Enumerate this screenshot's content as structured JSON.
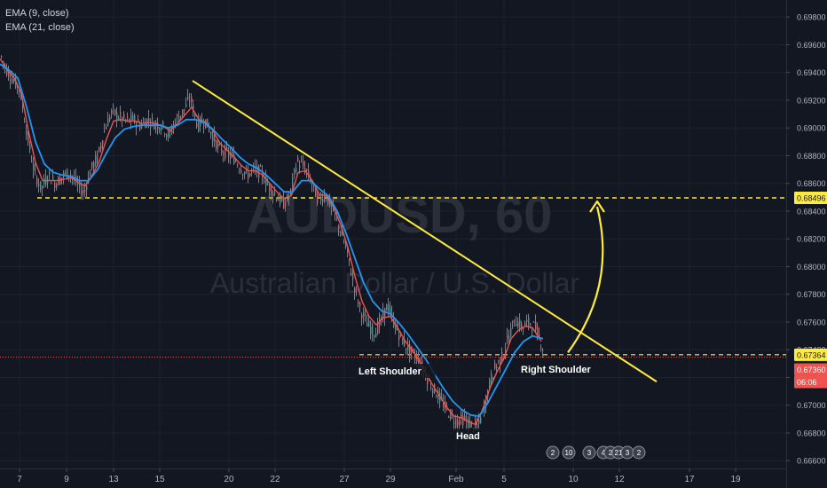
{
  "chart_data": {
    "type": "line",
    "symbol": "AUDUSD, 60",
    "description": "Australian Dollar / U.S. Dollar",
    "indicators": [
      "EMA (9, close)",
      "EMA (21, close)"
    ],
    "x_ticks": [
      "7",
      "9",
      "13",
      "15",
      "20",
      "22",
      "27",
      "29",
      "Feb",
      "5",
      "10",
      "12",
      "17",
      "19"
    ],
    "y_ticks": [
      "0.69800",
      "0.69600",
      "0.69400",
      "0.69200",
      "0.69000",
      "0.68800",
      "0.68600",
      "0.68400",
      "0.68200",
      "0.68000",
      "0.67800",
      "0.67600",
      "0.67400",
      "0.67200",
      "0.67000",
      "0.66800",
      "0.66600"
    ],
    "ylim": [
      0.6655,
      0.6991
    ],
    "price_labels": {
      "resistance": "0.68496",
      "neckline": "0.67364",
      "last_price": "0.67360",
      "countdown": "06:06"
    },
    "annotations": {
      "left_shoulder": "Left Shoulder",
      "head": "Head",
      "right_shoulder": "Right Shoulder"
    },
    "event_flags": [
      "2",
      "10",
      "3",
      "4",
      "2",
      "21",
      "3",
      "2"
    ],
    "price_path": [
      [
        0,
        0.6953
      ],
      [
        6,
        0.6943
      ],
      [
        14,
        0.6935
      ],
      [
        22,
        0.6928
      ],
      [
        30,
        0.6895
      ],
      [
        38,
        0.6868
      ],
      [
        46,
        0.6856
      ],
      [
        54,
        0.6866
      ],
      [
        62,
        0.686
      ],
      [
        70,
        0.6865
      ],
      [
        78,
        0.6868
      ],
      [
        86,
        0.686
      ],
      [
        94,
        0.6853
      ],
      [
        102,
        0.687
      ],
      [
        110,
        0.688
      ],
      [
        118,
        0.69
      ],
      [
        126,
        0.6912
      ],
      [
        134,
        0.6908
      ],
      [
        142,
        0.6905
      ],
      [
        150,
        0.6906
      ],
      [
        158,
        0.6902
      ],
      [
        166,
        0.6906
      ],
      [
        174,
        0.6903
      ],
      [
        182,
        0.6902
      ],
      [
        190,
        0.6894
      ],
      [
        198,
        0.6906
      ],
      [
        206,
        0.6912
      ],
      [
        214,
        0.6922
      ],
      [
        222,
        0.6902
      ],
      [
        230,
        0.6906
      ],
      [
        238,
        0.6896
      ],
      [
        246,
        0.6885
      ],
      [
        254,
        0.6882
      ],
      [
        262,
        0.6879
      ],
      [
        270,
        0.6872
      ],
      [
        278,
        0.6866
      ],
      [
        286,
        0.687
      ],
      [
        294,
        0.6868
      ],
      [
        302,
        0.6858
      ],
      [
        310,
        0.6852
      ],
      [
        318,
        0.6845
      ],
      [
        326,
        0.685
      ],
      [
        334,
        0.6876
      ],
      [
        342,
        0.6872
      ],
      [
        350,
        0.6862
      ],
      [
        358,
        0.6848
      ],
      [
        366,
        0.6852
      ],
      [
        374,
        0.6842
      ],
      [
        382,
        0.6828
      ],
      [
        390,
        0.6812
      ],
      [
        398,
        0.6788
      ],
      [
        406,
        0.6768
      ],
      [
        414,
        0.6758
      ],
      [
        422,
        0.6752
      ],
      [
        430,
        0.6762
      ],
      [
        436,
        0.6772
      ],
      [
        442,
        0.6762
      ],
      [
        450,
        0.675
      ],
      [
        458,
        0.6742
      ],
      [
        466,
        0.6736
      ],
      [
        474,
        0.673
      ],
      [
        482,
        0.6718
      ],
      [
        490,
        0.671
      ],
      [
        498,
        0.6702
      ],
      [
        506,
        0.6694
      ],
      [
        514,
        0.6688
      ],
      [
        522,
        0.669
      ],
      [
        530,
        0.6686
      ],
      [
        538,
        0.6684
      ],
      [
        546,
        0.67
      ],
      [
        552,
        0.6718
      ],
      [
        558,
        0.6728
      ],
      [
        566,
        0.6735
      ],
      [
        572,
        0.6748
      ],
      [
        580,
        0.6762
      ],
      [
        588,
        0.6756
      ],
      [
        596,
        0.676
      ],
      [
        604,
        0.6755
      ],
      [
        612,
        0.674
      ]
    ],
    "ema9_path": [
      [
        0,
        0.695
      ],
      [
        8,
        0.6942
      ],
      [
        16,
        0.6936
      ],
      [
        24,
        0.6925
      ],
      [
        32,
        0.6898
      ],
      [
        40,
        0.6875
      ],
      [
        48,
        0.6862
      ],
      [
        56,
        0.6862
      ],
      [
        64,
        0.6862
      ],
      [
        72,
        0.6863
      ],
      [
        80,
        0.6864
      ],
      [
        88,
        0.6861
      ],
      [
        96,
        0.6858
      ],
      [
        104,
        0.6866
      ],
      [
        112,
        0.6876
      ],
      [
        120,
        0.6892
      ],
      [
        128,
        0.6905
      ],
      [
        136,
        0.6906
      ],
      [
        144,
        0.6905
      ],
      [
        152,
        0.6905
      ],
      [
        160,
        0.6903
      ],
      [
        168,
        0.6904
      ],
      [
        176,
        0.6903
      ],
      [
        184,
        0.6901
      ],
      [
        192,
        0.6898
      ],
      [
        200,
        0.6903
      ],
      [
        208,
        0.6909
      ],
      [
        216,
        0.6915
      ],
      [
        224,
        0.6906
      ],
      [
        232,
        0.6904
      ],
      [
        240,
        0.6898
      ],
      [
        248,
        0.6889
      ],
      [
        256,
        0.6884
      ],
      [
        264,
        0.6879
      ],
      [
        272,
        0.6873
      ],
      [
        280,
        0.6869
      ],
      [
        288,
        0.6869
      ],
      [
        296,
        0.6866
      ],
      [
        304,
        0.686
      ],
      [
        312,
        0.6854
      ],
      [
        320,
        0.6849
      ],
      [
        328,
        0.6851
      ],
      [
        336,
        0.6868
      ],
      [
        344,
        0.6869
      ],
      [
        352,
        0.6862
      ],
      [
        360,
        0.6852
      ],
      [
        368,
        0.6851
      ],
      [
        376,
        0.6843
      ],
      [
        384,
        0.683
      ],
      [
        392,
        0.6814
      ],
      [
        400,
        0.6793
      ],
      [
        408,
        0.6775
      ],
      [
        416,
        0.6764
      ],
      [
        424,
        0.6758
      ],
      [
        432,
        0.6763
      ],
      [
        440,
        0.6764
      ],
      [
        448,
        0.6756
      ],
      [
        456,
        0.6747
      ],
      [
        464,
        0.674
      ],
      [
        472,
        0.6733
      ],
      [
        480,
        0.6723
      ],
      [
        488,
        0.6714
      ],
      [
        496,
        0.6706
      ],
      [
        504,
        0.6698
      ],
      [
        512,
        0.6692
      ],
      [
        520,
        0.6691
      ],
      [
        528,
        0.6688
      ],
      [
        536,
        0.6686
      ],
      [
        544,
        0.6697
      ],
      [
        552,
        0.6712
      ],
      [
        560,
        0.6724
      ],
      [
        568,
        0.6734
      ],
      [
        576,
        0.6748
      ],
      [
        584,
        0.6754
      ],
      [
        592,
        0.6757
      ],
      [
        600,
        0.6756
      ],
      [
        610,
        0.6746
      ]
    ],
    "ema21_path": [
      [
        0,
        0.6946
      ],
      [
        10,
        0.6942
      ],
      [
        20,
        0.6936
      ],
      [
        30,
        0.6915
      ],
      [
        40,
        0.689
      ],
      [
        50,
        0.6874
      ],
      [
        60,
        0.6868
      ],
      [
        70,
        0.6866
      ],
      [
        80,
        0.6865
      ],
      [
        90,
        0.6862
      ],
      [
        100,
        0.6862
      ],
      [
        110,
        0.687
      ],
      [
        120,
        0.6882
      ],
      [
        130,
        0.6893
      ],
      [
        140,
        0.6899
      ],
      [
        150,
        0.6901
      ],
      [
        160,
        0.6902
      ],
      [
        170,
        0.6902
      ],
      [
        180,
        0.6902
      ],
      [
        190,
        0.69
      ],
      [
        200,
        0.6902
      ],
      [
        210,
        0.6906
      ],
      [
        220,
        0.6906
      ],
      [
        230,
        0.6904
      ],
      [
        240,
        0.6899
      ],
      [
        250,
        0.6892
      ],
      [
        260,
        0.6886
      ],
      [
        270,
        0.6879
      ],
      [
        280,
        0.6874
      ],
      [
        290,
        0.6871
      ],
      [
        300,
        0.6866
      ],
      [
        310,
        0.686
      ],
      [
        320,
        0.6854
      ],
      [
        330,
        0.6854
      ],
      [
        340,
        0.6862
      ],
      [
        350,
        0.6862
      ],
      [
        360,
        0.6856
      ],
      [
        370,
        0.6851
      ],
      [
        380,
        0.684
      ],
      [
        390,
        0.6824
      ],
      [
        400,
        0.6806
      ],
      [
        410,
        0.6788
      ],
      [
        420,
        0.6775
      ],
      [
        430,
        0.6768
      ],
      [
        440,
        0.6766
      ],
      [
        450,
        0.6759
      ],
      [
        460,
        0.6751
      ],
      [
        470,
        0.6742
      ],
      [
        480,
        0.6733
      ],
      [
        490,
        0.6722
      ],
      [
        500,
        0.6712
      ],
      [
        510,
        0.6703
      ],
      [
        520,
        0.6697
      ],
      [
        530,
        0.6693
      ],
      [
        540,
        0.6692
      ],
      [
        550,
        0.6702
      ],
      [
        560,
        0.6714
      ],
      [
        570,
        0.6726
      ],
      [
        580,
        0.6738
      ],
      [
        590,
        0.6746
      ],
      [
        600,
        0.675
      ],
      [
        612,
        0.6748
      ]
    ],
    "trendline": [
      [
        217,
        0.6934
      ],
      [
        740,
        0.6717
      ]
    ],
    "resistance_level": 0.68496,
    "neckline_level": 0.67364,
    "last_price_level": 0.6736,
    "projection_arrow": {
      "from": [
        640,
        0.6738
      ],
      "to": [
        673,
        0.6847
      ]
    },
    "colors": {
      "background": "#131722",
      "grid": "#1e222d",
      "candle_up": "#26a69a",
      "candle_down": "#ef5350",
      "ema9": "#ef5350",
      "ema21": "#2196f3",
      "trendline": "#ffeb3b",
      "resistance_label_bg": "#ffeb3b",
      "last_price_bg": "#ef5350",
      "axis_text": "#b2b5be",
      "watermark": "#2a2e39"
    }
  }
}
